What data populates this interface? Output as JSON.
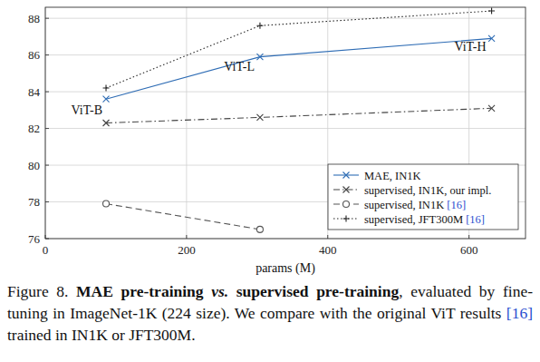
{
  "chart_data": {
    "type": "line",
    "x_label": "params (M)",
    "xlim": [
      0,
      680
    ],
    "xticks": [
      0,
      200,
      400,
      600
    ],
    "ylim": [
      76,
      88.6
    ],
    "yticks": [
      76,
      78,
      80,
      82,
      84,
      86,
      88
    ],
    "grid": true,
    "legend": "lower right",
    "series": [
      {
        "name": "MAE, IN1K",
        "color": "#2f6db5",
        "marker": "x",
        "line_style": "solid",
        "x": [
          86,
          304,
          632
        ],
        "values": [
          83.6,
          85.9,
          86.9
        ],
        "labels": [
          "ViT-B",
          "ViT-L",
          "ViT-H"
        ]
      },
      {
        "name": "supervised, IN1K, our impl.",
        "color": "#444444",
        "marker": "x",
        "line_style": "dashdot",
        "x": [
          86,
          304,
          632
        ],
        "values": [
          82.3,
          82.6,
          83.1
        ]
      },
      {
        "name": "supervised, IN1K [16]",
        "color": "#555555",
        "marker": "circle",
        "line_style": "dashed",
        "x": [
          86,
          304
        ],
        "values": [
          77.9,
          76.5
        ]
      },
      {
        "name": "supervised, JFT300M [16]",
        "color": "#222222",
        "marker": "plus",
        "line_style": "dotted",
        "x": [
          86,
          304,
          632
        ],
        "values": [
          84.2,
          87.6,
          88.4
        ]
      }
    ],
    "caption": [
      {
        "text": "Figure 8. ",
        "style": "normal"
      },
      {
        "text": "MAE pre-training ",
        "style": "bold"
      },
      {
        "text": "vs.",
        "style": "bold-italic"
      },
      {
        "text": " supervised pre-training",
        "style": "bold"
      },
      {
        "text": ", evaluated by fine-tuning in ImageNet-1K (224 size). We compare with the original ViT results [16] trained in IN1K or JFT300M.",
        "style": "normal"
      }
    ]
  }
}
